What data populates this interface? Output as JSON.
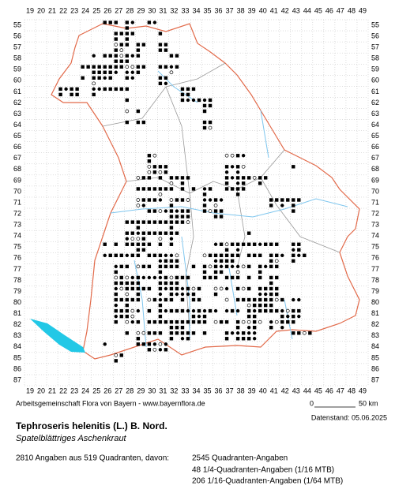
{
  "map": {
    "columns": [
      19,
      20,
      21,
      22,
      23,
      24,
      25,
      26,
      27,
      28,
      29,
      30,
      31,
      32,
      33,
      34,
      35,
      36,
      37,
      38,
      39,
      40,
      41,
      42,
      43,
      44,
      45,
      46,
      47,
      48,
      49
    ],
    "rows": [
      55,
      56,
      57,
      58,
      59,
      60,
      61,
      62,
      63,
      64,
      65,
      66,
      67,
      68,
      69,
      70,
      71,
      72,
      73,
      74,
      75,
      76,
      77,
      78,
      79,
      80,
      81,
      82,
      83,
      84,
      85,
      86,
      87
    ],
    "scale": {
      "start": "0",
      "end": "50 km"
    },
    "credit": "Arbeitsgemeinschaft Flora von Bayern - www.bayernflora.de",
    "date": "Datenstand: 05.06.2025",
    "title": "Tephroseris helenitis (L.) B. Nord.",
    "subtitle": "Spatelblättriges Aschenkraut",
    "summary": "2810 Angaben aus 519 Quadranten, davon:",
    "counts": [
      "2545 Quadranten-Angaben",
      "48 1/4-Quadranten-Angaben (1/16 MTB)",
      "206 1/16-Quadranten-Angaben (1/64 MTB)"
    ]
  }
}
